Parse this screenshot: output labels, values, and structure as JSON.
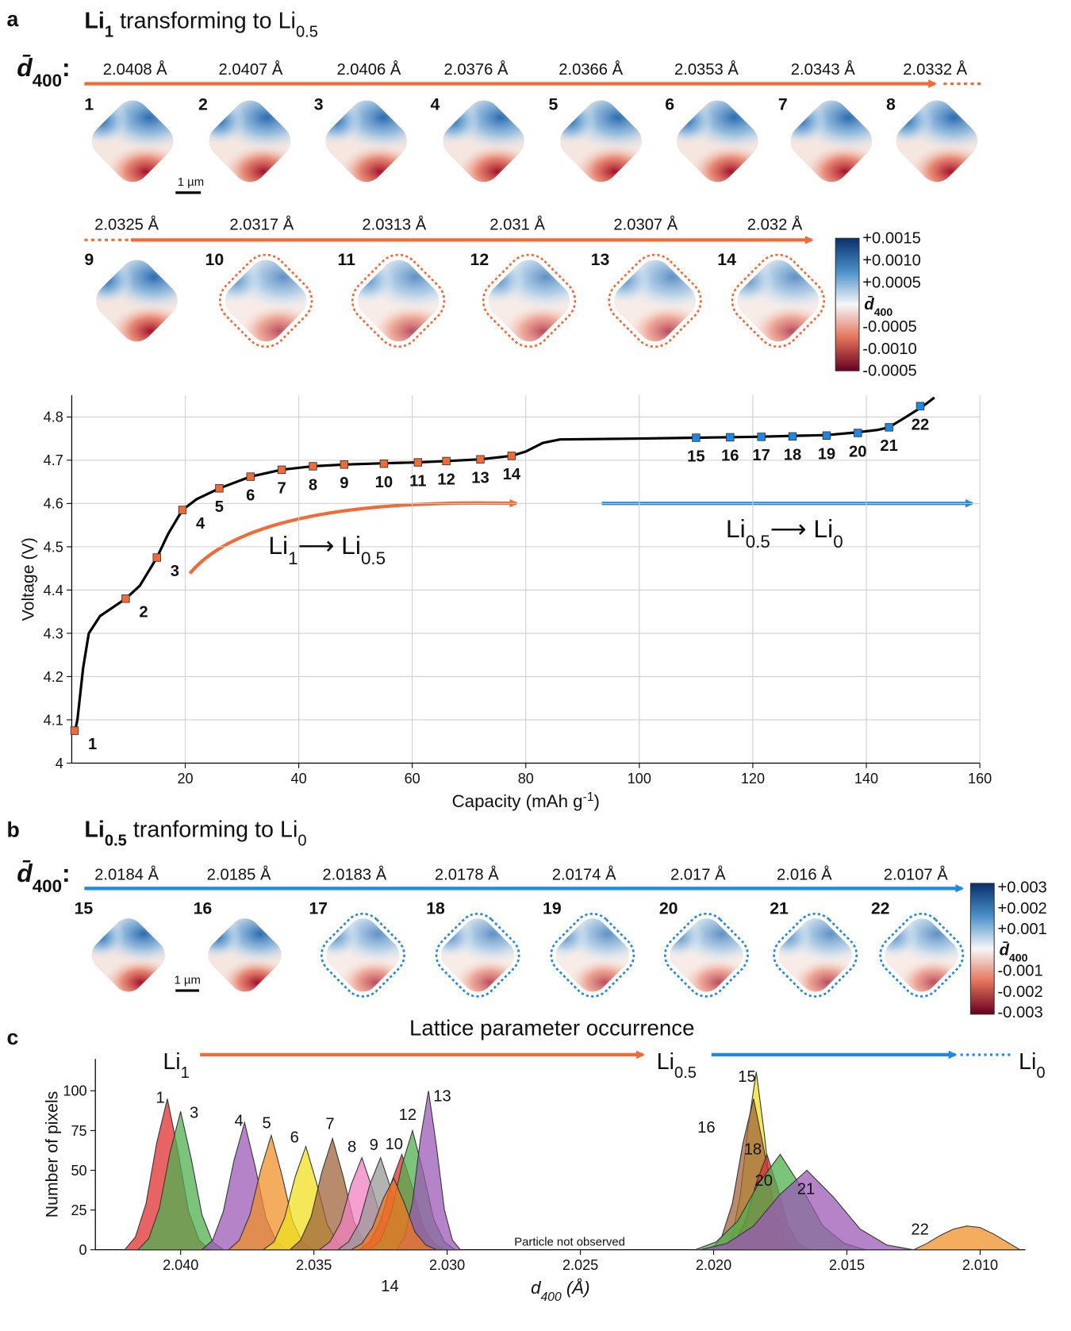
{
  "panel_a": {
    "letter": "a",
    "title": [
      {
        "text": "Li",
        "bold": true
      },
      {
        "text": "1",
        "bold": true,
        "sub": true
      },
      {
        "text": " transforming to Li"
      },
      {
        "text": "0.5",
        "sub": true
      }
    ],
    "dbar": [
      {
        "text": "d̄",
        "bold": true,
        "italic": true
      },
      {
        "text": "400",
        "bold": true,
        "sub": true
      },
      {
        "text": ":",
        "bold": true
      }
    ],
    "outline_color": "#f26a36",
    "scale": "1 µm",
    "maps": [
      {
        "label": "1",
        "d": "2.0408 Å",
        "outlined": false
      },
      {
        "label": "2",
        "d": "2.0407 Å",
        "outlined": false
      },
      {
        "label": "3",
        "d": "2.0406 Å",
        "outlined": false
      },
      {
        "label": "4",
        "d": "2.0376 Å",
        "outlined": false
      },
      {
        "label": "5",
        "d": "2.0366 Å",
        "outlined": false
      },
      {
        "label": "6",
        "d": "2.0353 Å",
        "outlined": false
      },
      {
        "label": "7",
        "d": "2.0343 Å",
        "outlined": false
      },
      {
        "label": "8",
        "d": "2.0332 Å",
        "outlined": false
      },
      {
        "label": "9",
        "d": "2.0325 Å",
        "outlined": false
      },
      {
        "label": "10",
        "d": "2.0317 Å",
        "outlined": true
      },
      {
        "label": "11",
        "d": "2.0313 Å",
        "outlined": true
      },
      {
        "label": "12",
        "d": "2.031 Å",
        "outlined": true
      },
      {
        "label": "13",
        "d": "2.0307 Å",
        "outlined": true
      },
      {
        "label": "14",
        "d": "2.032 Å",
        "outlined": true
      }
    ],
    "colorbar_top": [
      "+0.0015",
      "+0.0010",
      "+0.0005"
    ],
    "colorbar_mid": [
      {
        "text": "d̄",
        "bold": true,
        "italic": true
      },
      {
        "text": "400",
        "bold": true,
        "sub": true
      }
    ],
    "colorbar_bottom": [
      "-0.0005",
      "-0.0010",
      "-0.0005"
    ]
  },
  "panel_b": {
    "letter": "b",
    "title": [
      {
        "text": "Li",
        "bold": true
      },
      {
        "text": "0.5",
        "bold": true,
        "sub": true
      },
      {
        "text": " tranforming to Li"
      },
      {
        "text": "0",
        "sub": true
      }
    ],
    "dbar": [
      {
        "text": "d̄",
        "bold": true,
        "italic": true
      },
      {
        "text": "400",
        "bold": true,
        "sub": true
      },
      {
        "text": ":",
        "bold": true
      }
    ],
    "outline_color": "#1e88e5",
    "scale": "1 µm",
    "maps": [
      {
        "label": "15",
        "d": "2.0184 Å",
        "outlined": false
      },
      {
        "label": "16",
        "d": "2.0185 Å",
        "outlined": false
      },
      {
        "label": "17",
        "d": "2.0183 Å",
        "outlined": true
      },
      {
        "label": "18",
        "d": "2.0178 Å",
        "outlined": true
      },
      {
        "label": "19",
        "d": "2.0174 Å",
        "outlined": true
      },
      {
        "label": "20",
        "d": "2.017 Å",
        "outlined": true
      },
      {
        "label": "21",
        "d": "2.016 Å",
        "outlined": true
      },
      {
        "label": "22",
        "d": "2.0107 Å",
        "outlined": true
      }
    ],
    "colorbar_top": [
      "+0.003",
      "+0.002",
      "+0.001"
    ],
    "colorbar_mid": [
      {
        "text": "d̄",
        "bold": true,
        "italic": true
      },
      {
        "text": "400",
        "bold": true,
        "sub": true
      }
    ],
    "colorbar_bottom": [
      "-0.001",
      "-0.002",
      "-0.003"
    ]
  },
  "panel_c": {
    "letter": "c"
  },
  "chart_data": [
    {
      "type": "line",
      "x_label": [
        {
          "text": "Capacity (mAh g"
        },
        {
          "text": "-1",
          "sup": true
        },
        {
          "text": ")"
        }
      ],
      "y_label": "Voltage (V)",
      "xlim": [
        0,
        160
      ],
      "xticks": [
        20,
        40,
        60,
        80,
        100,
        120,
        140,
        160
      ],
      "ylim": [
        4,
        4.85
      ],
      "yticks": [
        4,
        4.1,
        4.2,
        4.3,
        4.4,
        4.5,
        4.6,
        4.7,
        4.8
      ],
      "grid": true,
      "series": [
        {
          "color": "#000000",
          "x": [
            0.5,
            1,
            2,
            3,
            5,
            9.5,
            12,
            15,
            17,
            19.5,
            22,
            26,
            31.5,
            37,
            42.5,
            48,
            55,
            61,
            66,
            72,
            77.5,
            80,
            83,
            86,
            100,
            110,
            120,
            133,
            138,
            142,
            144,
            147,
            150,
            152
          ],
          "values": [
            4.07,
            4.1,
            4.22,
            4.3,
            4.34,
            4.38,
            4.41,
            4.475,
            4.53,
            4.585,
            4.61,
            4.635,
            4.662,
            4.678,
            4.686,
            4.69,
            4.693,
            4.695,
            4.698,
            4.702,
            4.71,
            4.72,
            4.74,
            4.748,
            4.75,
            4.752,
            4.754,
            4.758,
            4.764,
            4.77,
            4.776,
            4.8,
            4.825,
            4.845
          ]
        },
        {
          "color": "#f26a36",
          "labels": [
            "1",
            "2",
            "3",
            "4",
            "5",
            "6",
            "7",
            "8",
            "9",
            "10",
            "11",
            "12",
            "13",
            "14"
          ],
          "x": [
            0.5,
            9.5,
            15,
            19.5,
            26,
            31.5,
            37,
            42.5,
            48,
            55,
            61,
            66,
            72,
            77.5
          ],
          "values": [
            4.075,
            4.38,
            4.475,
            4.585,
            4.635,
            4.662,
            4.678,
            4.686,
            4.69,
            4.692,
            4.695,
            4.698,
            4.702,
            4.71
          ]
        },
        {
          "color": "#1e88e5",
          "labels": [
            "15",
            "16",
            "17",
            "18",
            "19",
            "20",
            "21",
            "22"
          ],
          "x": [
            110,
            116,
            121.5,
            127,
            133,
            138.5,
            144,
            149.5
          ],
          "values": [
            4.752,
            4.753,
            4.754,
            4.755,
            4.757,
            4.763,
            4.776,
            4.825
          ]
        }
      ],
      "annotations": [
        {
          "color": "#f26a36",
          "parts": [
            {
              "text": "Li"
            },
            {
              "text": "1",
              "sub": true
            },
            {
              "text": "⟶ Li"
            },
            {
              "text": "0.5",
              "sub": true
            }
          ]
        },
        {
          "color": "#1e88e5",
          "parts": [
            {
              "text": "Li"
            },
            {
              "text": "0.5",
              "sub": true
            },
            {
              "text": "⟶ Li"
            },
            {
              "text": "0",
              "sub": true
            }
          ]
        }
      ]
    },
    {
      "type": "area",
      "title": "Lattice parameter occurrence",
      "x_label": [
        {
          "text": "d",
          "italic": true
        },
        {
          "text": "400",
          "sub": true,
          "italic": true
        },
        {
          "text": " (Å)",
          "italic": true
        }
      ],
      "y_label": "Number of pixels",
      "xlim": [
        2.0432,
        2.0083
      ],
      "xticks": [
        {
          "value": 2.04,
          "label": "2.040"
        },
        2.035,
        {
          "value": 2.03,
          "label": "2.030"
        },
        2.025,
        {
          "value": 2.02,
          "label": "2.020"
        },
        2.015,
        {
          "value": 2.01,
          "label": "2.010"
        }
      ],
      "ylim": [
        0,
        120
      ],
      "yticks": [
        0,
        25,
        50,
        75,
        100
      ],
      "annotation": "Particle not observed",
      "flow": [
        {
          "color": "#f26a36",
          "parts": [
            {
              "text": "Li"
            },
            {
              "text": "1",
              "sub": true
            }
          ]
        },
        {
          "color": "#1e88e5",
          "parts": [
            {
              "text": "Li"
            },
            {
              "text": "0.5",
              "sub": true
            }
          ]
        },
        {
          "parts": [
            {
              "text": "Li"
            },
            {
              "text": "0",
              "sub": true
            }
          ]
        }
      ],
      "series": [
        {
          "name": "1",
          "color": "#e03030",
          "x": [
            2.0421,
            2.0417,
            2.0413,
            2.0409,
            2.0405,
            2.0401,
            2.0397,
            2.0393,
            2.0389
          ],
          "values": [
            0,
            8,
            29,
            67,
            95,
            62,
            24,
            6,
            0
          ]
        },
        {
          "name": "3",
          "color": "#50b050",
          "x": [
            2.0416,
            2.0412,
            2.0408,
            2.0404,
            2.04,
            2.0396,
            2.0392,
            2.0388,
            2.0384
          ],
          "values": [
            0,
            7,
            26,
            61,
            87,
            57,
            22,
            5,
            0
          ]
        },
        {
          "name": "4",
          "color": "#9b59b6",
          "x": [
            2.0392,
            2.0388,
            2.0384,
            2.038,
            2.0376,
            2.0372,
            2.0368,
            2.0364,
            2.036
          ],
          "values": [
            0,
            6,
            24,
            56,
            80,
            52,
            20,
            5,
            0
          ]
        },
        {
          "name": "5",
          "color": "#f0902a",
          "x": [
            2.0382,
            2.0378,
            2.0374,
            2.037,
            2.0366,
            2.0362,
            2.0358,
            2.0354,
            2.035
          ],
          "values": [
            0,
            6,
            22,
            50,
            72,
            47,
            18,
            4,
            0
          ]
        },
        {
          "name": "6",
          "color": "#f0e020",
          "x": [
            2.0369,
            2.0365,
            2.0361,
            2.0357,
            2.0353,
            2.0349,
            2.0345,
            2.0341,
            2.0337
          ],
          "values": [
            0,
            5,
            20,
            46,
            65,
            42,
            16,
            4,
            0
          ]
        },
        {
          "name": "7",
          "color": "#a0643c",
          "x": [
            2.0359,
            2.0355,
            2.0351,
            2.0347,
            2.0343,
            2.0339,
            2.0335,
            2.0331,
            2.0327
          ],
          "values": [
            0,
            6,
            21,
            49,
            70,
            46,
            18,
            4,
            0
          ]
        },
        {
          "name": "8",
          "color": "#f080c0",
          "x": [
            2.0348,
            2.0344,
            2.034,
            2.0336,
            2.0332,
            2.0328,
            2.0324,
            2.032,
            2.0316
          ],
          "values": [
            0,
            5,
            17,
            41,
            58,
            38,
            15,
            3,
            0
          ]
        },
        {
          "name": "9",
          "color": "#999999",
          "x": [
            2.0341,
            2.0337,
            2.0333,
            2.0329,
            2.0325,
            2.0321,
            2.0317,
            2.0313,
            2.0309
          ],
          "values": [
            0,
            5,
            17,
            41,
            58,
            38,
            15,
            3,
            0
          ]
        },
        {
          "name": "10",
          "color": "#e03030",
          "x": [
            2.0333,
            2.0329,
            2.0325,
            2.0321,
            2.0317,
            2.0313,
            2.0309,
            2.0305,
            2.0301
          ],
          "values": [
            0,
            5,
            18,
            42,
            60,
            39,
            15,
            4,
            0
          ]
        },
        {
          "name": "12",
          "color": "#50b050",
          "x": [
            2.0329,
            2.0325,
            2.0321,
            2.0317,
            2.0313,
            2.0309,
            2.0305,
            2.0301,
            2.0297
          ],
          "values": [
            0,
            6,
            23,
            53,
            75,
            49,
            19,
            5,
            0
          ]
        },
        {
          "name": "13",
          "color": "#9b59b6",
          "x": [
            2.0319,
            2.0316,
            2.0313,
            2.031,
            2.0307,
            2.0304,
            2.0301,
            2.0298,
            2.0295
          ],
          "values": [
            0,
            8,
            30,
            70,
            100,
            65,
            25,
            6,
            0
          ]
        },
        {
          "name": "14",
          "color": "#f07820",
          "x": [
            2.0336,
            2.0332,
            2.0328,
            2.0324,
            2.032,
            2.0316,
            2.0312,
            2.0308,
            2.0304
          ],
          "values": [
            0,
            4,
            14,
            32,
            45,
            29,
            11,
            3,
            0
          ]
        },
        {
          "name": "15",
          "color": "#f0e020",
          "x": [
            2.0196,
            2.0193,
            2.019,
            2.0187,
            2.0184,
            2.0181,
            2.0178,
            2.0175,
            2.0172
          ],
          "values": [
            0,
            9,
            34,
            78,
            112,
            73,
            28,
            7,
            0
          ]
        },
        {
          "name": "16",
          "color": "#a0643c",
          "x": [
            2.0201,
            2.0197,
            2.0193,
            2.0189,
            2.0185,
            2.0181,
            2.0177,
            2.0173,
            2.0169
          ],
          "values": [
            0,
            8,
            29,
            67,
            95,
            62,
            24,
            6,
            0
          ]
        },
        {
          "name": "18",
          "color": "#e03030",
          "x": [
            2.0196,
            2.0192,
            2.0188,
            2.0184,
            2.018,
            2.0176,
            2.0172,
            2.0168,
            2.0164
          ],
          "values": [
            0,
            5,
            18,
            42,
            60,
            39,
            15,
            4,
            0
          ]
        },
        {
          "name": "20",
          "color": "#50b050",
          "x": [
            2.0207,
            2.0199,
            2.0191,
            2.0183,
            2.0175,
            2.0167,
            2.0159,
            2.0151,
            2.0143
          ],
          "values": [
            0,
            5,
            18,
            42,
            60,
            39,
            15,
            4,
            0
          ]
        },
        {
          "name": "21",
          "color": "#9b59b6",
          "x": [
            2.0205,
            2.0195,
            2.0185,
            2.0175,
            2.0165,
            2.0155,
            2.0145,
            2.0135,
            2.0125
          ],
          "values": [
            0,
            4,
            15,
            35,
            50,
            33,
            13,
            3,
            0
          ]
        },
        {
          "name": "22",
          "color": "#f0902a",
          "x": [
            2.0125,
            2.012,
            2.0115,
            2.011,
            2.0105,
            2.01,
            2.0095,
            2.009,
            2.0085
          ],
          "values": [
            0,
            4,
            9,
            13,
            15,
            14,
            10,
            5,
            0
          ]
        }
      ]
    }
  ]
}
